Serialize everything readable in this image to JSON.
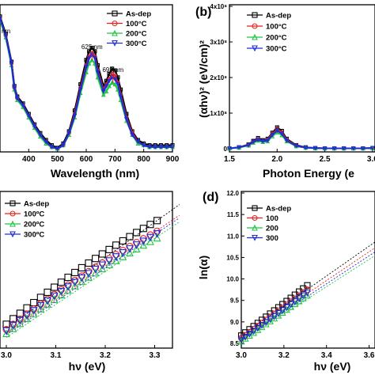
{
  "colors": {
    "as_dep": "#000000",
    "c100": "#e8201e",
    "c200": "#22c444",
    "c300": "#1f2bd8"
  },
  "chart_data": [
    {
      "panel": "",
      "type": "line",
      "xlabel": "Wavelength (nm)",
      "ylabel": "",
      "xlim": [
        300,
        900
      ],
      "xticks": [
        "400",
        "500",
        "600",
        "700",
        "800",
        "900"
      ],
      "top_annotation": "nm",
      "annotations": [
        {
          "text": "625 nm",
          "x": 620
        },
        {
          "text": "693 nm",
          "x": 693
        }
      ],
      "legend_position": "top-right",
      "x": [
        300,
        320,
        340,
        350,
        360,
        380,
        400,
        420,
        440,
        460,
        480,
        500,
        520,
        540,
        560,
        580,
        600,
        610,
        620,
        630,
        640,
        660,
        670,
        680,
        690,
        700,
        710,
        720,
        740,
        760,
        780,
        800,
        820,
        840,
        860,
        880,
        900
      ],
      "series": [
        {
          "name": "As-dep",
          "marker": "square",
          "values": [
            0.76,
            0.66,
            0.5,
            0.36,
            0.3,
            0.26,
            0.2,
            0.14,
            0.09,
            0.05,
            0.02,
            0.005,
            0.03,
            0.1,
            0.22,
            0.37,
            0.51,
            0.56,
            0.58,
            0.56,
            0.48,
            0.36,
            0.39,
            0.43,
            0.46,
            0.45,
            0.41,
            0.34,
            0.2,
            0.1,
            0.05,
            0.03,
            0.02,
            0.02,
            0.02,
            0.02,
            0.02
          ]
        },
        {
          "name": "100°C",
          "marker": "circle",
          "values": [
            0.75,
            0.65,
            0.49,
            0.35,
            0.29,
            0.25,
            0.19,
            0.13,
            0.08,
            0.04,
            0.01,
            0.0,
            0.02,
            0.09,
            0.2,
            0.35,
            0.48,
            0.53,
            0.55,
            0.53,
            0.45,
            0.34,
            0.37,
            0.4,
            0.43,
            0.42,
            0.38,
            0.31,
            0.18,
            0.09,
            0.04,
            0.02,
            0.01,
            0.01,
            0.01,
            0.01,
            0.01
          ]
        },
        {
          "name": "200°C",
          "marker": "triangle-up",
          "values": [
            0.74,
            0.64,
            0.48,
            0.34,
            0.28,
            0.24,
            0.18,
            0.12,
            0.07,
            0.03,
            0.01,
            0.0,
            0.02,
            0.08,
            0.18,
            0.32,
            0.44,
            0.49,
            0.51,
            0.49,
            0.41,
            0.31,
            0.33,
            0.36,
            0.38,
            0.37,
            0.34,
            0.28,
            0.16,
            0.08,
            0.03,
            0.02,
            0.01,
            0.01,
            0.01,
            0.01,
            0.01
          ]
        },
        {
          "name": "300°C",
          "marker": "triangle-down",
          "values": [
            0.75,
            0.65,
            0.49,
            0.35,
            0.29,
            0.25,
            0.19,
            0.13,
            0.08,
            0.04,
            0.01,
            0.0,
            0.02,
            0.09,
            0.19,
            0.34,
            0.47,
            0.52,
            0.54,
            0.52,
            0.44,
            0.33,
            0.36,
            0.39,
            0.41,
            0.4,
            0.37,
            0.3,
            0.17,
            0.08,
            0.04,
            0.02,
            0.01,
            0.01,
            0.01,
            0.01,
            0.01
          ]
        }
      ]
    },
    {
      "panel": "(b)",
      "type": "line",
      "xlabel": "Photon Energy (e",
      "ylabel": "(αhν)² (eV/cm)²",
      "xlim": [
        1.5,
        3.2
      ],
      "ylim": [
        0,
        400000000.0
      ],
      "xticks": [
        "1.5",
        "2.0",
        "2.5",
        "3.0"
      ],
      "yticks": [
        "0",
        "1x10⁸",
        "2x10⁸",
        "3x10⁸",
        "4x10⁸"
      ],
      "legend_position": "top-left",
      "x": [
        1.5,
        1.6,
        1.7,
        1.75,
        1.8,
        1.85,
        1.9,
        1.95,
        2.0,
        2.05,
        2.1,
        2.2,
        2.3,
        2.4,
        2.5,
        2.6,
        2.7,
        2.8,
        2.9,
        3.0,
        3.1,
        3.15,
        3.2
      ],
      "series": [
        {
          "name": "As-dep",
          "marker": "square",
          "values": [
            1000000.0,
            4000000.0,
            12000000.0,
            22000000.0,
            30000000.0,
            24000000.0,
            28000000.0,
            45000000.0,
            60000000.0,
            50000000.0,
            28000000.0,
            10000000.0,
            4000000.0,
            2000000.0,
            1000000.0,
            1000000.0,
            1000000.0,
            1000000.0,
            1000000.0,
            2000000.0,
            8000000.0,
            22000000.0,
            35000000.0
          ]
        },
        {
          "name": "100°C",
          "marker": "circle",
          "values": [
            1000000.0,
            4000000.0,
            11000000.0,
            20000000.0,
            27000000.0,
            22000000.0,
            25000000.0,
            42000000.0,
            55000000.0,
            46000000.0,
            25000000.0,
            9000000.0,
            3000000.0,
            2000000.0,
            1000000.0,
            1000000.0,
            1000000.0,
            1000000.0,
            1000000.0,
            2000000.0,
            7000000.0,
            20000000.0,
            33000000.0
          ]
        },
        {
          "name": "200°C",
          "marker": "triangle-up",
          "values": [
            1000000.0,
            3000000.0,
            9000000.0,
            17000000.0,
            23000000.0,
            19000000.0,
            21000000.0,
            35000000.0,
            46000000.0,
            38000000.0,
            21000000.0,
            7000000.0,
            3000000.0,
            1000000.0,
            1000000.0,
            1000000.0,
            1000000.0,
            1000000.0,
            1000000.0,
            2000000.0,
            6000000.0,
            17000000.0,
            29000000.0
          ]
        },
        {
          "name": "300°C",
          "marker": "triangle-down",
          "values": [
            1000000.0,
            4000000.0,
            10000000.0,
            19000000.0,
            25000000.0,
            21000000.0,
            23000000.0,
            39000000.0,
            51000000.0,
            42000000.0,
            23000000.0,
            8000000.0,
            3000000.0,
            2000000.0,
            1000000.0,
            1000000.0,
            1000000.0,
            1000000.0,
            1000000.0,
            2000000.0,
            7000000.0,
            19000000.0,
            31000000.0
          ]
        }
      ]
    },
    {
      "panel": "",
      "type": "scatter",
      "xlabel": "hν (eV)",
      "ylabel": "",
      "xlim": [
        3.0,
        3.35
      ],
      "xticks": [
        "3.0",
        "3.1",
        "3.2",
        "3.3"
      ],
      "legend_position": "top-left",
      "fit_lines": true,
      "series": [
        {
          "name": "As-dep",
          "marker": "square",
          "x0": 3.0,
          "x1": 3.305,
          "y0": 0.12,
          "y1": 0.9
        },
        {
          "name": "100ºC",
          "marker": "circle",
          "x0": 3.0,
          "x1": 3.305,
          "y0": 0.08,
          "y1": 0.82
        },
        {
          "name": "200ºC",
          "marker": "triangle-up",
          "x0": 3.0,
          "x1": 3.305,
          "y0": 0.05,
          "y1": 0.77
        },
        {
          "name": "300ºC",
          "marker": "triangle-down",
          "x0": 3.0,
          "x1": 3.305,
          "y0": 0.07,
          "y1": 0.8
        }
      ]
    },
    {
      "panel": "(d)",
      "type": "scatter",
      "xlabel": "hν (eV)",
      "ylabel": "ln(α)",
      "xlim": [
        3.0,
        3.65
      ],
      "ylim": [
        8.5,
        12.0
      ],
      "xticks": [
        "3.0",
        "3.2",
        "3.4",
        "3.6"
      ],
      "yticks": [
        "8.5",
        "9.0",
        "9.5",
        "10.0",
        "10.5",
        "11.0",
        "11.5",
        "12.0"
      ],
      "legend_position": "top-left",
      "fit_lines": true,
      "series": [
        {
          "name": "As-dep",
          "marker": "square",
          "x0": 3.0,
          "x1": 3.31,
          "y0": 8.68,
          "y1": 9.85
        },
        {
          "name": "100",
          "marker": "circle",
          "x0": 3.0,
          "x1": 3.31,
          "y0": 8.62,
          "y1": 9.75
        },
        {
          "name": "200",
          "marker": "triangle-up",
          "x0": 3.0,
          "x1": 3.31,
          "y0": 8.55,
          "y1": 9.62
        },
        {
          "name": "300",
          "marker": "triangle-down",
          "x0": 3.0,
          "x1": 3.31,
          "y0": 8.58,
          "y1": 9.68
        }
      ]
    }
  ]
}
